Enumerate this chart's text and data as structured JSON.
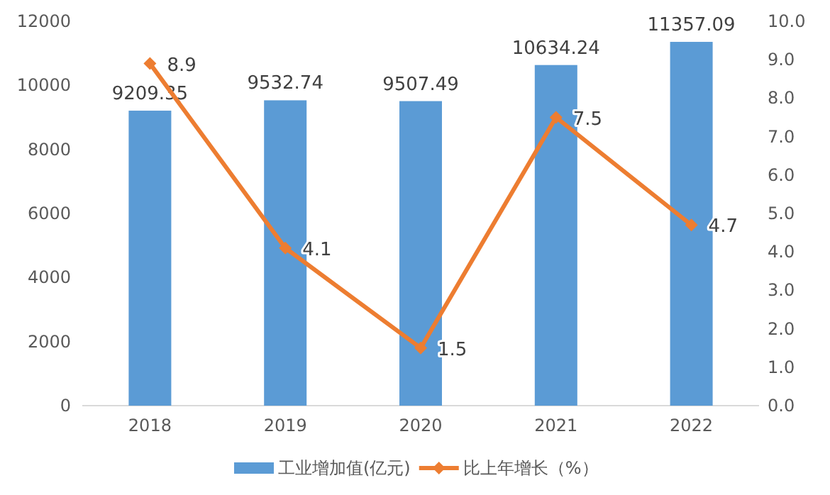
{
  "chart_data": {
    "type": "bar",
    "categories": [
      "2018",
      "2019",
      "2020",
      "2021",
      "2022"
    ],
    "series": [
      {
        "name": "工业增加值(亿元)",
        "color": "#5b9bd5",
        "values": [
          9209.35,
          9532.74,
          9507.49,
          10634.24,
          11357.09
        ]
      },
      {
        "name": "比上年增长（%）",
        "type": "line",
        "axis": "y2",
        "color": "#ed7d31",
        "values": [
          8.9,
          4.1,
          1.5,
          7.5,
          4.7
        ]
      }
    ],
    "ylim": [
      0,
      12000
    ],
    "yticks": [
      0,
      2000,
      4000,
      6000,
      8000,
      10000,
      12000
    ],
    "y2lim": [
      0,
      10
    ],
    "y2ticks": [
      {
        "value": 0,
        "label": "0.0"
      },
      {
        "value": 1,
        "label": "1.0"
      },
      {
        "value": 2,
        "label": "2.0"
      },
      {
        "value": 3,
        "label": "3.0"
      },
      {
        "value": 4,
        "label": "4.0"
      },
      {
        "value": 5,
        "label": "5.0"
      },
      {
        "value": 6,
        "label": "6.0"
      },
      {
        "value": 7,
        "label": "7.0"
      },
      {
        "value": 8,
        "label": "8.0"
      },
      {
        "value": 9,
        "label": "9.0"
      },
      {
        "value": 10,
        "label": "10.0"
      }
    ],
    "data_labels": true,
    "marker": "diamond",
    "legend": "bottom",
    "grid": false
  }
}
